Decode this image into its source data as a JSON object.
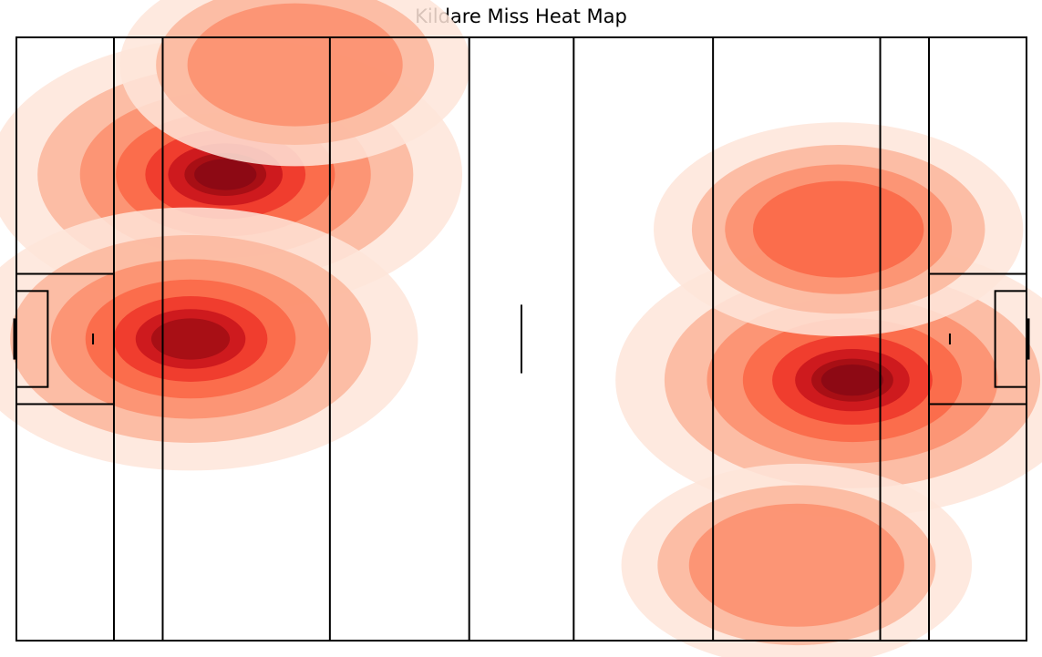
{
  "chart_data": {
    "type": "heatmap",
    "title": "Kildare Miss Heat Map",
    "xlabel": "",
    "ylabel": "",
    "xlim": [
      0,
      145
    ],
    "ylim": [
      0,
      88
    ],
    "grid": false,
    "legend": "none",
    "colormap": [
      "#fee5d9",
      "#fcbba1",
      "#fc9272",
      "#fb6a4a",
      "#ef3b2c",
      "#cb181d",
      "#a50f15",
      "#8b0a14"
    ],
    "clusters": [
      {
        "x": 30,
        "y": 68,
        "weight": 1.0
      },
      {
        "x": 25,
        "y": 44,
        "weight": 0.9
      },
      {
        "x": 120,
        "y": 38,
        "weight": 1.0
      },
      {
        "x": 112,
        "y": 11,
        "weight": 0.35
      },
      {
        "x": 118,
        "y": 60,
        "weight": 0.45
      },
      {
        "x": 40,
        "y": 84,
        "weight": 0.35
      }
    ]
  },
  "colors": {
    "line": "#000000",
    "background": "#ffffff"
  }
}
